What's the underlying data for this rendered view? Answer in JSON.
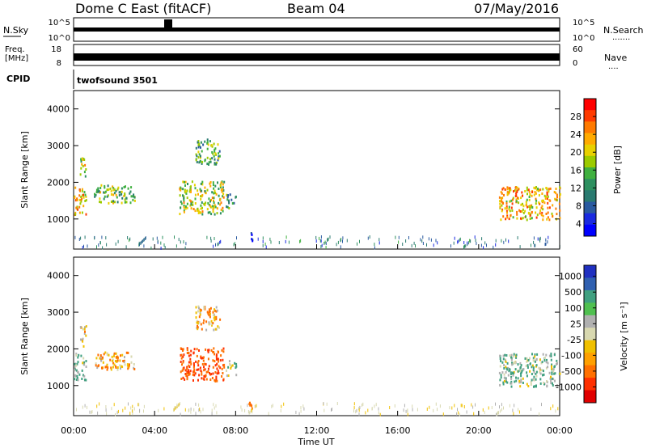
{
  "header": {
    "title": "Dome C East (fitACF)",
    "beam": "Beam 04",
    "date": "07/May/2016"
  },
  "sky_panel": {
    "left_label": "N.Sky",
    "right_label": "N.Search",
    "right_dots": "·······",
    "left_ticks": [
      "10^5",
      "10^0"
    ],
    "right_ticks": [
      "10^5",
      "10^0"
    ]
  },
  "freq_panel": {
    "left_label_1": "Freq.",
    "left_label_2": "[MHz]",
    "right_label": "Nave",
    "right_dots": "····",
    "left_ticks": [
      "18",
      "8"
    ],
    "right_ticks": [
      "60",
      "0"
    ]
  },
  "cpid": {
    "label": "CPID",
    "value": "twofsound 3501"
  },
  "power_panel": {
    "ylabel": "Slant Range [km]",
    "colorbar_label": "Power [dB]",
    "colorbar_ticks": [
      "28",
      "24",
      "20",
      "16",
      "12",
      "8",
      "4"
    ],
    "colorbar_colors": [
      "#ff0000",
      "#ff3b00",
      "#ff7a00",
      "#ffaa00",
      "#e8d000",
      "#9ccb00",
      "#40b040",
      "#2e9060",
      "#2a7a70",
      "#2a5aa0",
      "#1a2ae0",
      "#0000ff"
    ]
  },
  "velocity_panel": {
    "ylabel": "Slant Range [km]",
    "colorbar_label": "Velocity [m s⁻¹]",
    "colorbar_ticks": [
      "1000",
      "500",
      "100",
      "25",
      "-25",
      "-100",
      "-500",
      "-1000"
    ],
    "colorbar_colors": [
      "#2030c0",
      "#3060b0",
      "#40a080",
      "#50c050",
      "#b0b0b0",
      "#d8d8b0",
      "#f0c000",
      "#ffa000",
      "#ff7000",
      "#ff3000",
      "#e00000"
    ]
  },
  "x_axis": {
    "label": "Time UT",
    "ticks": [
      "00:00",
      "04:00",
      "08:00",
      "12:00",
      "16:00",
      "20:00",
      "00:00"
    ]
  },
  "chart_data": {
    "type": "heatmap",
    "x_range_hours": [
      0,
      24
    ],
    "y_range_km": [
      180,
      4500
    ],
    "yticks": [
      1000,
      2000,
      3000,
      4000
    ],
    "power_echoes": [
      {
        "t0": 0.0,
        "t1": 0.6,
        "r0": 1100,
        "r1": 1900,
        "value": 22
      },
      {
        "t0": 0.3,
        "t1": 0.6,
        "r0": 2100,
        "r1": 2700,
        "value": 18
      },
      {
        "t0": 1.0,
        "t1": 3.0,
        "r0": 1450,
        "r1": 1950,
        "value": 16
      },
      {
        "t0": 5.2,
        "t1": 7.4,
        "r0": 1150,
        "r1": 2050,
        "value": 18
      },
      {
        "t0": 6.0,
        "t1": 7.2,
        "r0": 2500,
        "r1": 3200,
        "value": 14
      },
      {
        "t0": 7.5,
        "t1": 8.0,
        "r0": 1300,
        "r1": 1700,
        "value": 12
      },
      {
        "t0": 8.6,
        "t1": 8.8,
        "r0": 400,
        "r1": 650,
        "value": 6
      },
      {
        "t0": 21.0,
        "t1": 24.0,
        "r0": 1000,
        "r1": 1900,
        "value": 22
      }
    ],
    "velocity_echoes": [
      {
        "t0": 0.0,
        "t1": 0.6,
        "r0": 1100,
        "r1": 1900,
        "value": 100
      },
      {
        "t0": 0.3,
        "t1": 0.6,
        "r0": 2100,
        "r1": 2700,
        "value": -25
      },
      {
        "t0": 1.0,
        "t1": 3.0,
        "r0": 1450,
        "r1": 1950,
        "value": -100
      },
      {
        "t0": 5.2,
        "t1": 7.4,
        "r0": 1150,
        "r1": 2050,
        "value": -500
      },
      {
        "t0": 6.0,
        "t1": 7.2,
        "r0": 2500,
        "r1": 3200,
        "value": -100
      },
      {
        "t0": 7.5,
        "t1": 8.0,
        "r0": 1300,
        "r1": 1700,
        "value": 25
      },
      {
        "t0": 8.6,
        "t1": 8.8,
        "r0": 400,
        "r1": 650,
        "value": -500
      },
      {
        "t0": 21.0,
        "t1": 24.0,
        "r0": 1000,
        "r1": 1900,
        "value": 100
      }
    ]
  }
}
